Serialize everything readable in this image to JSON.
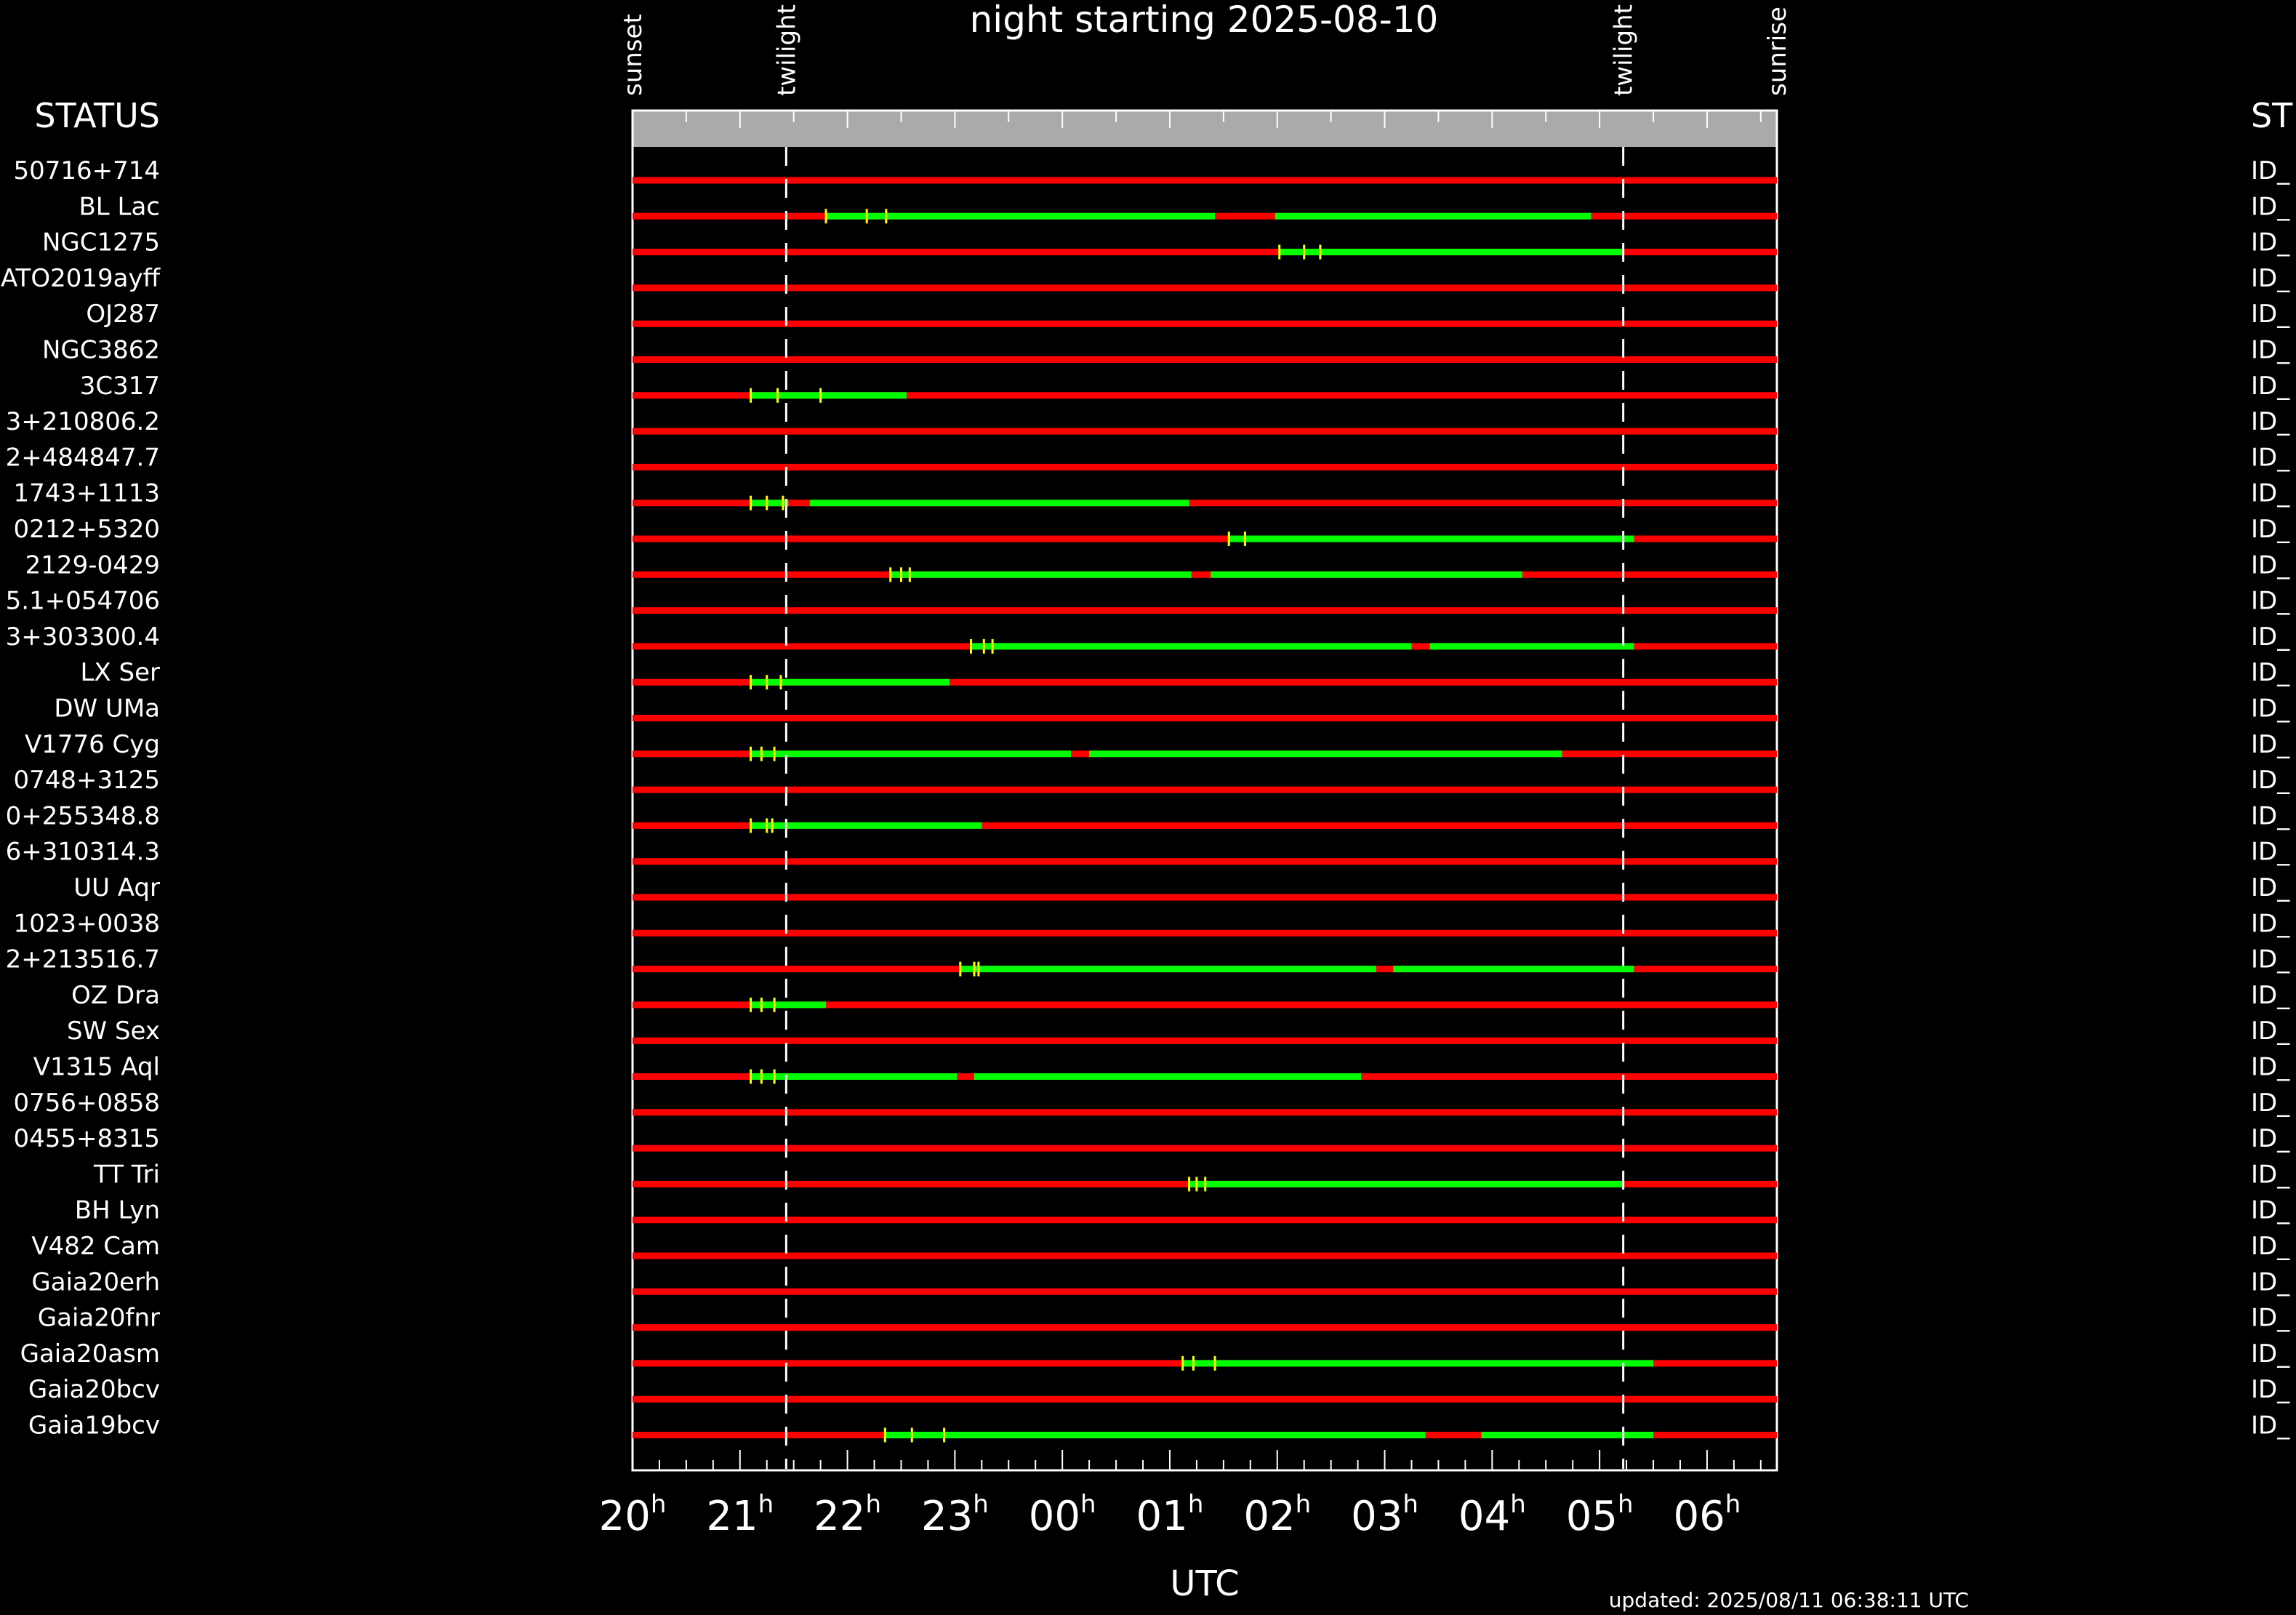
{
  "chart_data": {
    "type": "gantt",
    "title": "night starting 2025-08-10",
    "xlabel": "UTC",
    "updated": "updated: 2025/08/11 06:38:11 UTC",
    "left_header": "STATUS",
    "right_header": "ST",
    "right_label": "ID_",
    "x_range_hours": [
      20.0,
      30.65
    ],
    "x_ticks": [
      {
        "label": "20",
        "hour": 20
      },
      {
        "label": "21",
        "hour": 21
      },
      {
        "label": "22",
        "hour": 22
      },
      {
        "label": "23",
        "hour": 23
      },
      {
        "label": "00",
        "hour": 24
      },
      {
        "label": "01",
        "hour": 25
      },
      {
        "label": "02",
        "hour": 26
      },
      {
        "label": "03",
        "hour": 27
      },
      {
        "label": "04",
        "hour": 28
      },
      {
        "label": "05",
        "hour": 29
      },
      {
        "label": "06",
        "hour": 30
      }
    ],
    "tick_suffix": "h",
    "events": [
      {
        "label": "sunset",
        "hour": 20.0,
        "dashed": false
      },
      {
        "label": "twilight",
        "hour": 21.43,
        "dashed": true
      },
      {
        "label": "twilight",
        "hour": 29.22,
        "dashed": true
      },
      {
        "label": "sunrise",
        "hour": 30.65,
        "dashed": false
      }
    ],
    "colors": {
      "unobservable": "#ff0000",
      "observable": "#00ff00",
      "marker": "#ffff00",
      "header_bar": "#aaaaaa"
    },
    "targets": [
      {
        "name": "50716+714",
        "segments": [],
        "markers": []
      },
      {
        "name": "BL Lac",
        "segments": [
          [
            21.8,
            25.42
          ],
          [
            25.98,
            28.92
          ]
        ],
        "markers": [
          21.8,
          22.18,
          22.36
        ]
      },
      {
        "name": "NGC1275",
        "segments": [
          [
            26.02,
            29.22
          ]
        ],
        "markers": [
          26.02,
          26.25,
          26.4
        ]
      },
      {
        "name": "ATO2019ayff",
        "segments": [],
        "markers": []
      },
      {
        "name": "OJ287",
        "segments": [],
        "markers": []
      },
      {
        "name": "NGC3862",
        "segments": [],
        "markers": []
      },
      {
        "name": "3C317",
        "segments": [
          [
            21.1,
            22.55
          ]
        ],
        "markers": [
          21.1,
          21.35,
          21.75
        ]
      },
      {
        "name": "3+210806.2",
        "segments": [],
        "markers": []
      },
      {
        "name": "2+484847.7",
        "segments": [],
        "markers": []
      },
      {
        "name": "1743+1113",
        "segments": [
          [
            21.1,
            21.45
          ],
          [
            21.65,
            25.18
          ]
        ],
        "markers": [
          21.1,
          21.25,
          21.4
        ]
      },
      {
        "name": "0212+5320",
        "segments": [
          [
            25.55,
            29.32
          ]
        ],
        "markers": [
          25.55,
          25.7
        ]
      },
      {
        "name": "2129-0429",
        "segments": [
          [
            22.4,
            25.2
          ],
          [
            25.38,
            28.28
          ]
        ],
        "markers": [
          22.4,
          22.5,
          22.58
        ]
      },
      {
        "name": "5.1+054706",
        "segments": [],
        "markers": []
      },
      {
        "name": "3+303300.4",
        "segments": [
          [
            23.15,
            27.25
          ],
          [
            27.42,
            29.32
          ]
        ],
        "markers": [
          23.15,
          23.27,
          23.35
        ]
      },
      {
        "name": "LX Ser",
        "segments": [
          [
            21.1,
            22.95
          ]
        ],
        "markers": [
          21.1,
          21.25,
          21.38
        ]
      },
      {
        "name": "DW UMa",
        "segments": [],
        "markers": []
      },
      {
        "name": "V1776 Cyg",
        "segments": [
          [
            21.1,
            24.08
          ],
          [
            24.25,
            28.65
          ]
        ],
        "markers": [
          21.1,
          21.2,
          21.32
        ]
      },
      {
        "name": "0748+3125",
        "segments": [],
        "markers": []
      },
      {
        "name": "0+255348.8",
        "segments": [
          [
            21.1,
            23.25
          ]
        ],
        "markers": [
          21.1,
          21.25,
          21.3
        ]
      },
      {
        "name": "6+310314.3",
        "segments": [],
        "markers": []
      },
      {
        "name": "UU Aqr",
        "segments": [],
        "markers": []
      },
      {
        "name": "1023+0038",
        "segments": [],
        "markers": []
      },
      {
        "name": "2+213516.7",
        "segments": [
          [
            23.05,
            26.92
          ],
          [
            27.08,
            29.32
          ]
        ],
        "markers": [
          23.05,
          23.18,
          23.22
        ]
      },
      {
        "name": "OZ Dra",
        "segments": [
          [
            21.1,
            21.8
          ]
        ],
        "markers": [
          21.1,
          21.2,
          21.32
        ]
      },
      {
        "name": "SW Sex",
        "segments": [],
        "markers": []
      },
      {
        "name": "V1315 Aql",
        "segments": [
          [
            21.1,
            23.02
          ],
          [
            23.18,
            26.78
          ]
        ],
        "markers": [
          21.1,
          21.2,
          21.32
        ]
      },
      {
        "name": "0756+0858",
        "segments": [],
        "markers": []
      },
      {
        "name": "0455+8315",
        "segments": [],
        "markers": []
      },
      {
        "name": "TT Tri",
        "segments": [
          [
            25.18,
            29.22
          ]
        ],
        "markers": [
          25.18,
          25.25,
          25.33
        ]
      },
      {
        "name": "BH Lyn",
        "segments": [],
        "markers": []
      },
      {
        "name": "V482 Cam",
        "segments": [],
        "markers": []
      },
      {
        "name": "Gaia20erh",
        "segments": [],
        "markers": []
      },
      {
        "name": "Gaia20fnr",
        "segments": [],
        "markers": []
      },
      {
        "name": "Gaia20asm",
        "segments": [
          [
            25.12,
            29.5
          ]
        ],
        "markers": [
          25.12,
          25.22,
          25.42
        ]
      },
      {
        "name": "Gaia20bcv",
        "segments": [],
        "markers": []
      },
      {
        "name": "Gaia19bcv",
        "segments": [
          [
            22.35,
            27.38
          ],
          [
            27.9,
            29.5
          ]
        ],
        "markers": [
          22.35,
          22.6,
          22.9
        ]
      }
    ]
  }
}
